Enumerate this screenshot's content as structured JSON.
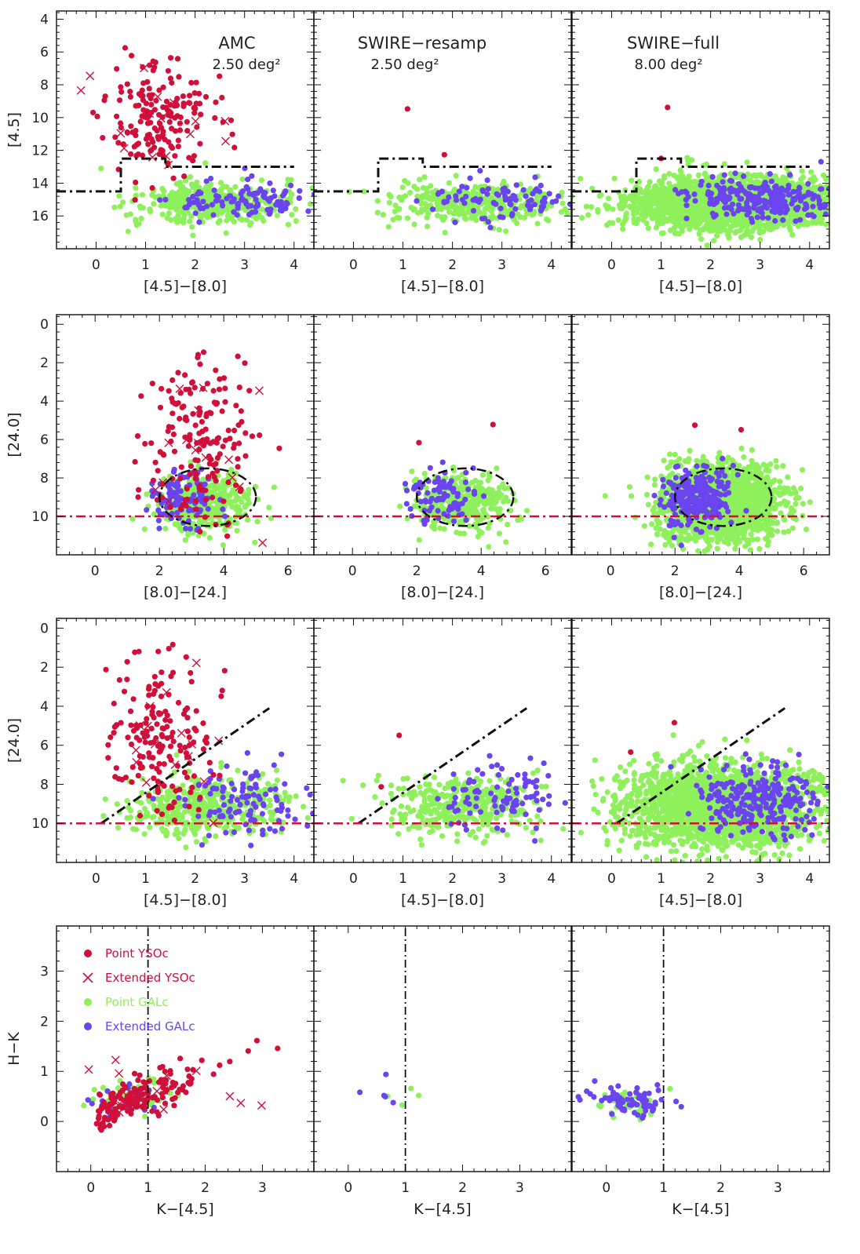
{
  "colors": {
    "point_yso": "#d0103a",
    "extended_yso": "#d0103a",
    "point_gal": "#8ef05a",
    "extended_gal": "#6a44ef",
    "red_dashdot": "#d0103a",
    "black": "#111111"
  },
  "legend": [
    {
      "label": "Point YSOc",
      "kind": "point_yso"
    },
    {
      "label": "Extended YSOc",
      "kind": "extended_yso"
    },
    {
      "label": "Point GALc",
      "kind": "point_gal"
    },
    {
      "label": "Extended GALc",
      "kind": "extended_gal"
    }
  ],
  "columns": [
    {
      "title": "AMC",
      "area": "2.50 deg²"
    },
    {
      "title": "SWIRE−resamp",
      "area": "2.50 deg²"
    },
    {
      "title": "SWIRE−full",
      "area": "8.00 deg²"
    }
  ],
  "chart_data": [
    {
      "type": "scatter",
      "row": 0,
      "xlabel": "[4.5]−[8.0]",
      "ylabel": "[4.5]",
      "xlim": [
        -0.8,
        4.4
      ],
      "ylim": [
        18,
        3.5
      ],
      "xticks": [
        0,
        1,
        2,
        3,
        4
      ],
      "yticks": [
        4,
        6,
        8,
        10,
        12,
        14,
        16
      ],
      "cuts": [
        {
          "style": "black-dashdot",
          "points": [
            [
              -0.8,
              14.5
            ],
            [
              0.5,
              14.5
            ],
            [
              0.5,
              12.5
            ],
            [
              1.4,
              12.5
            ],
            [
              1.4,
              13.0
            ],
            [
              4.0,
              13.0
            ]
          ]
        }
      ],
      "clusters": {
        "yso": {
          "cx": 1.3,
          "cy": 10.2,
          "sx": 0.55,
          "sy": 1.7
        },
        "gal": {
          "cx": 2.4,
          "cy": 15.2,
          "sx": 0.85,
          "sy": 0.6
        },
        "galx": {
          "cx": 3.0,
          "cy": 15.0,
          "sx": 0.7,
          "sy": 0.6
        }
      }
    },
    {
      "type": "scatter",
      "row": 1,
      "xlabel": "[8.0]−[24.]",
      "ylabel": "[24.0]",
      "xlim": [
        -1.2,
        6.8
      ],
      "ylim": [
        12,
        -0.5
      ],
      "xticks": [
        0,
        2,
        4,
        6
      ],
      "yticks": [
        0,
        2,
        4,
        6,
        8,
        10
      ],
      "cuts": [
        {
          "style": "black-ellipse",
          "cx": 3.5,
          "cy": 9.0,
          "rx": 1.5,
          "ry": 1.5
        },
        {
          "style": "red-dashdot-h",
          "y": 10.0,
          "x0": -1.2,
          "x1": 6.8
        }
      ],
      "clusters": {
        "yso": {
          "cx": 3.4,
          "cy": 6.0,
          "sx": 0.9,
          "sy": 2.3
        },
        "gal": {
          "cx": 3.4,
          "cy": 9.3,
          "sx": 0.7,
          "sy": 0.7
        },
        "galx": {
          "cx": 2.7,
          "cy": 9.0,
          "sx": 0.5,
          "sy": 0.8
        }
      }
    },
    {
      "type": "scatter",
      "row": 2,
      "xlabel": "[4.5]−[8.0]",
      "ylabel": "[24.0]",
      "xlim": [
        -0.8,
        4.4
      ],
      "ylim": [
        12,
        -0.5
      ],
      "xticks": [
        0,
        1,
        2,
        3,
        4
      ],
      "yticks": [
        0,
        2,
        4,
        6,
        8,
        10
      ],
      "cuts": [
        {
          "style": "black-dashdot",
          "points": [
            [
              0.1,
              10.0
            ],
            [
              3.5,
              4.1
            ]
          ]
        },
        {
          "style": "red-dashdot-h",
          "y": 10.0,
          "x0": -0.8,
          "x1": 4.4
        }
      ],
      "clusters": {
        "yso": {
          "cx": 1.3,
          "cy": 5.5,
          "sx": 0.5,
          "sy": 1.9
        },
        "gal": {
          "cx": 2.2,
          "cy": 9.1,
          "sx": 0.8,
          "sy": 0.8
        },
        "galx": {
          "cx": 3.0,
          "cy": 8.8,
          "sx": 0.6,
          "sy": 0.9
        }
      }
    },
    {
      "type": "scatter",
      "row": 3,
      "xlabel": "K−[4.5]",
      "ylabel": "H−K",
      "xlim": [
        -0.6,
        3.9
      ],
      "ylim": [
        -1.0,
        3.9
      ],
      "xticks": [
        0,
        1,
        2,
        3
      ],
      "yticks": [
        0,
        1,
        2,
        3
      ],
      "cuts": [
        {
          "style": "black-dashdot-v",
          "x": 1.0,
          "y0": -1.0,
          "y1": 3.9
        }
      ],
      "clusters": {
        "yso": {
          "cx": 1.2,
          "cy": 0.75,
          "sx": 0.7,
          "sy": 0.35
        },
        "gal": {
          "cx": 0.8,
          "cy": 0.55,
          "sx": 0.35,
          "sy": 0.15
        },
        "galx": {
          "cx": 0.5,
          "cy": 0.45,
          "sx": 0.3,
          "sy": 0.15
        }
      }
    }
  ]
}
